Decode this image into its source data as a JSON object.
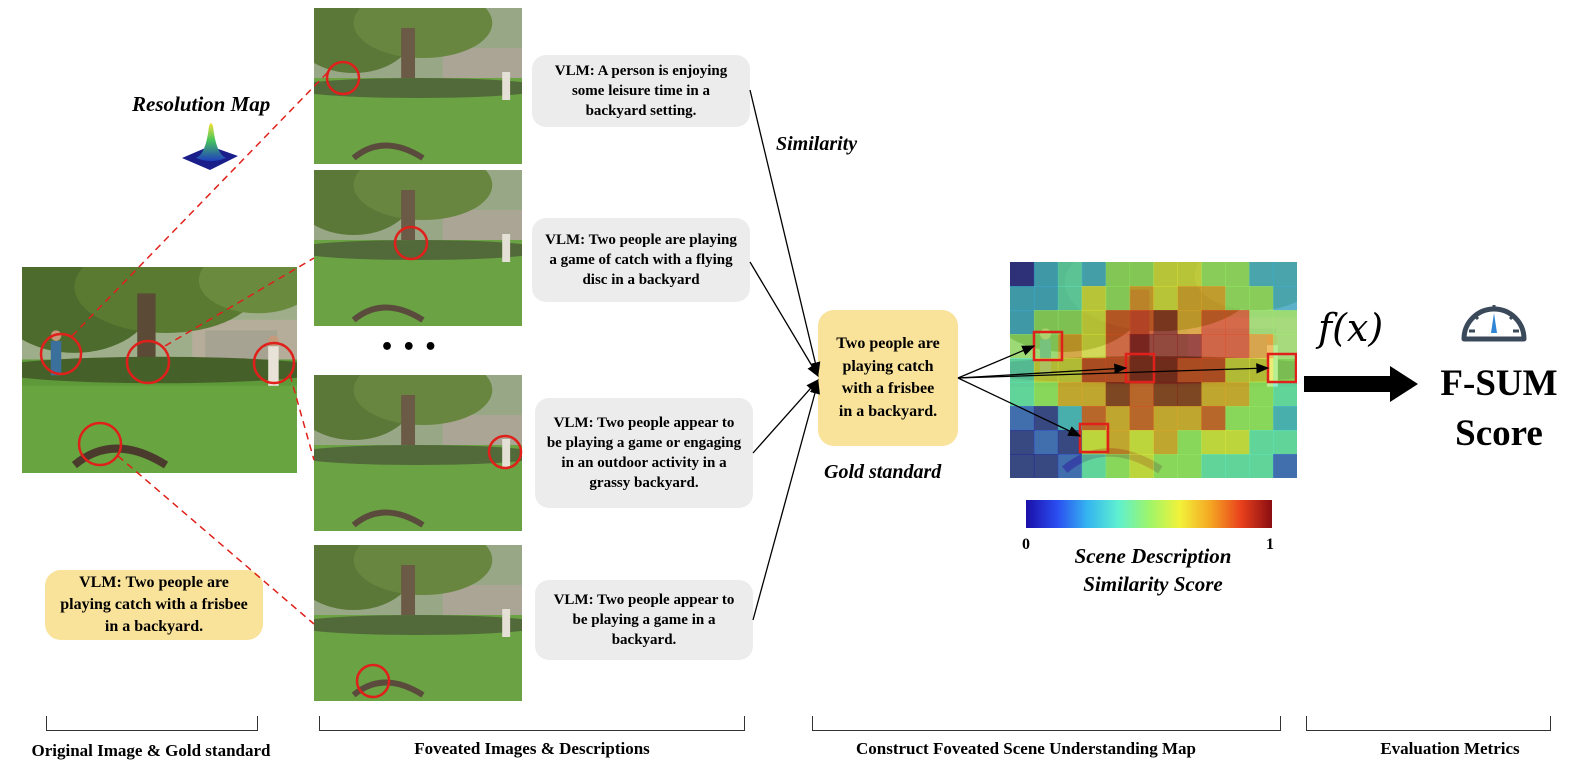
{
  "resolution_map": {
    "label": "Resolution Map"
  },
  "original": {
    "caption": "VLM: Two people are playing catch with a frisbee in a backyard."
  },
  "foveated": [
    {
      "caption": "VLM: A person is enjoying some leisure time in a backyard setting."
    },
    {
      "caption": "VLM: Two people are playing a game of catch with a flying disc in a backyard"
    },
    {
      "caption": "VLM: Two people appear to be playing a game or engaging in an outdoor activity in a grassy backyard."
    },
    {
      "caption": "VLM: Two people appear to be playing a game in a backyard."
    }
  ],
  "ellipsis": "• • •",
  "similarity_label": "Similarity",
  "gold": {
    "text": "Two people are playing catch with a frisbee in a backyard.",
    "label": "Gold standard"
  },
  "colorbar": {
    "min_label": "0",
    "max_label": "1",
    "title_line1": "Scene Description",
    "title_line2": "Similarity Score",
    "colors": [
      "#1b0fa8",
      "#2a4cf0",
      "#35b5f0",
      "#5ef0d0",
      "#9df56a",
      "#f2f23a",
      "#f5a623",
      "#e8401c",
      "#8a0d12"
    ]
  },
  "function_label": "f(x)",
  "score": {
    "line1": "F-SUM",
    "line2": "Score"
  },
  "sections": [
    {
      "label": "Original Image & Gold standard"
    },
    {
      "label": "Foveated Images & Descriptions"
    },
    {
      "label": "Construct Foveated Scene Understanding Map"
    },
    {
      "label": "Evaluation Metrics"
    }
  ],
  "colors": {
    "highlight_red": "#e0201a",
    "gold_fill": "#f9e29a",
    "bubble_fill": "#ececec"
  },
  "icons": [
    "gauge-icon",
    "gaussian-surface-icon",
    "arrow-right-icon"
  ]
}
